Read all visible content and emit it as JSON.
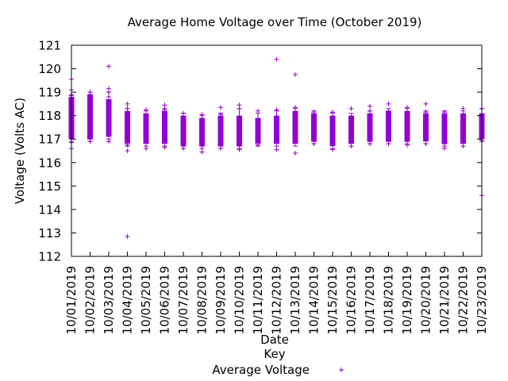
{
  "chart_data": {
    "type": "box",
    "title": "Average Home Voltage over Time (October 2019)",
    "xlabel": "Date",
    "ylabel": "Voltage (Volts AC)",
    "ylim": [
      112,
      121
    ],
    "yticks": [
      112,
      113,
      114,
      115,
      116,
      117,
      118,
      119,
      120,
      121
    ],
    "grid": false,
    "legend": {
      "title": "Key",
      "position": "bottom-center",
      "entries": [
        {
          "label": "Average Voltage",
          "color": "#9400d3",
          "marker": "plus"
        }
      ]
    },
    "color": "#9400d3",
    "categories": [
      "10/01/2019",
      "10/02/2019",
      "10/03/2019",
      "10/04/2019",
      "10/05/2019",
      "10/06/2019",
      "10/07/2019",
      "10/08/2019",
      "10/09/2019",
      "10/10/2019",
      "10/11/2019",
      "10/12/2019",
      "10/13/2019",
      "10/14/2019",
      "10/15/2019",
      "10/16/2019",
      "10/17/2019",
      "10/18/2019",
      "10/19/2019",
      "10/20/2019",
      "10/21/2019",
      "10/22/2019",
      "10/23/2019"
    ],
    "boxes": [
      {
        "q1": 117.0,
        "q3": 118.8,
        "lo": 116.9,
        "hi": 118.9
      },
      {
        "q1": 117.0,
        "q3": 118.9,
        "lo": 116.9,
        "hi": 119.0
      },
      {
        "q1": 117.1,
        "q3": 118.7,
        "lo": 116.9,
        "hi": 119.0
      },
      {
        "q1": 116.8,
        "q3": 118.2,
        "lo": 116.7,
        "hi": 118.3
      },
      {
        "q1": 116.8,
        "q3": 118.1,
        "lo": 116.7,
        "hi": 118.2
      },
      {
        "q1": 116.8,
        "q3": 118.2,
        "lo": 116.7,
        "hi": 118.3
      },
      {
        "q1": 116.7,
        "q3": 118.0,
        "lo": 116.6,
        "hi": 118.1
      },
      {
        "q1": 116.7,
        "q3": 117.9,
        "lo": 116.6,
        "hi": 118.0
      },
      {
        "q1": 116.7,
        "q3": 118.0,
        "lo": 116.6,
        "hi": 118.1
      },
      {
        "q1": 116.7,
        "q3": 118.0,
        "lo": 116.6,
        "hi": 118.3
      },
      {
        "q1": 116.8,
        "q3": 117.9,
        "lo": 116.7,
        "hi": 118.1
      },
      {
        "q1": 116.8,
        "q3": 118.0,
        "lo": 116.7,
        "hi": 118.2
      },
      {
        "q1": 116.8,
        "q3": 118.2,
        "lo": 116.7,
        "hi": 118.3
      },
      {
        "q1": 116.9,
        "q3": 118.1,
        "lo": 116.8,
        "hi": 118.2
      },
      {
        "q1": 116.7,
        "q3": 118.0,
        "lo": 116.6,
        "hi": 118.1
      },
      {
        "q1": 116.8,
        "q3": 118.0,
        "lo": 116.7,
        "hi": 118.1
      },
      {
        "q1": 116.9,
        "q3": 118.1,
        "lo": 116.8,
        "hi": 118.2
      },
      {
        "q1": 116.9,
        "q3": 118.2,
        "lo": 116.8,
        "hi": 118.3
      },
      {
        "q1": 116.9,
        "q3": 118.2,
        "lo": 116.8,
        "hi": 118.3
      },
      {
        "q1": 116.9,
        "q3": 118.1,
        "lo": 116.8,
        "hi": 118.2
      },
      {
        "q1": 116.8,
        "q3": 118.1,
        "lo": 116.7,
        "hi": 118.2
      },
      {
        "q1": 116.8,
        "q3": 118.1,
        "lo": 116.7,
        "hi": 118.2
      },
      {
        "q1": 117.0,
        "q3": 118.1,
        "lo": 116.9,
        "hi": 118.3
      }
    ],
    "points": [
      [
        0,
        119.55
      ],
      [
        0,
        119.1
      ],
      [
        0,
        118.85
      ],
      [
        0,
        117.0
      ],
      [
        0,
        116.85
      ],
      [
        0,
        116.6
      ],
      [
        1,
        119.0
      ],
      [
        1,
        118.9
      ],
      [
        1,
        117.0
      ],
      [
        1,
        116.9
      ],
      [
        2,
        120.1
      ],
      [
        2,
        119.15
      ],
      [
        2,
        119.0
      ],
      [
        2,
        118.8
      ],
      [
        2,
        117.0
      ],
      [
        2,
        116.9
      ],
      [
        3,
        118.5
      ],
      [
        3,
        118.3
      ],
      [
        3,
        116.75
      ],
      [
        3,
        116.5
      ],
      [
        3,
        112.85
      ],
      [
        4,
        118.25
      ],
      [
        4,
        116.85
      ],
      [
        4,
        116.6
      ],
      [
        5,
        118.45
      ],
      [
        5,
        118.25
      ],
      [
        5,
        116.85
      ],
      [
        5,
        116.65
      ],
      [
        6,
        118.1
      ],
      [
        6,
        116.7
      ],
      [
        6,
        116.6
      ],
      [
        7,
        118.05
      ],
      [
        7,
        116.7
      ],
      [
        7,
        116.6
      ],
      [
        7,
        116.45
      ],
      [
        8,
        118.35
      ],
      [
        8,
        118.05
      ],
      [
        8,
        116.7
      ],
      [
        8,
        116.6
      ],
      [
        9,
        118.45
      ],
      [
        9,
        118.3
      ],
      [
        9,
        116.7
      ],
      [
        9,
        116.55
      ],
      [
        10,
        118.2
      ],
      [
        10,
        116.85
      ],
      [
        10,
        116.75
      ],
      [
        11,
        120.4
      ],
      [
        11,
        118.25
      ],
      [
        11,
        116.85
      ],
      [
        11,
        116.55
      ],
      [
        12,
        119.75
      ],
      [
        12,
        118.35
      ],
      [
        12,
        116.85
      ],
      [
        12,
        116.4
      ],
      [
        13,
        118.15
      ],
      [
        13,
        116.9
      ],
      [
        13,
        116.8
      ],
      [
        14,
        118.15
      ],
      [
        14,
        116.75
      ],
      [
        14,
        116.55
      ],
      [
        15,
        118.3
      ],
      [
        15,
        116.85
      ],
      [
        15,
        116.7
      ],
      [
        16,
        118.4
      ],
      [
        16,
        118.2
      ],
      [
        16,
        116.9
      ],
      [
        16,
        116.8
      ],
      [
        17,
        118.5
      ],
      [
        17,
        118.2
      ],
      [
        17,
        116.9
      ],
      [
        17,
        116.8
      ],
      [
        18,
        118.35
      ],
      [
        18,
        116.9
      ],
      [
        18,
        116.75
      ],
      [
        19,
        118.5
      ],
      [
        19,
        118.15
      ],
      [
        19,
        116.95
      ],
      [
        19,
        116.8
      ],
      [
        20,
        118.15
      ],
      [
        20,
        116.8
      ],
      [
        20,
        116.6
      ],
      [
        21,
        118.3
      ],
      [
        21,
        116.85
      ],
      [
        21,
        116.7
      ],
      [
        22,
        118.3
      ],
      [
        22,
        116.95
      ],
      [
        22,
        114.6
      ]
    ]
  }
}
